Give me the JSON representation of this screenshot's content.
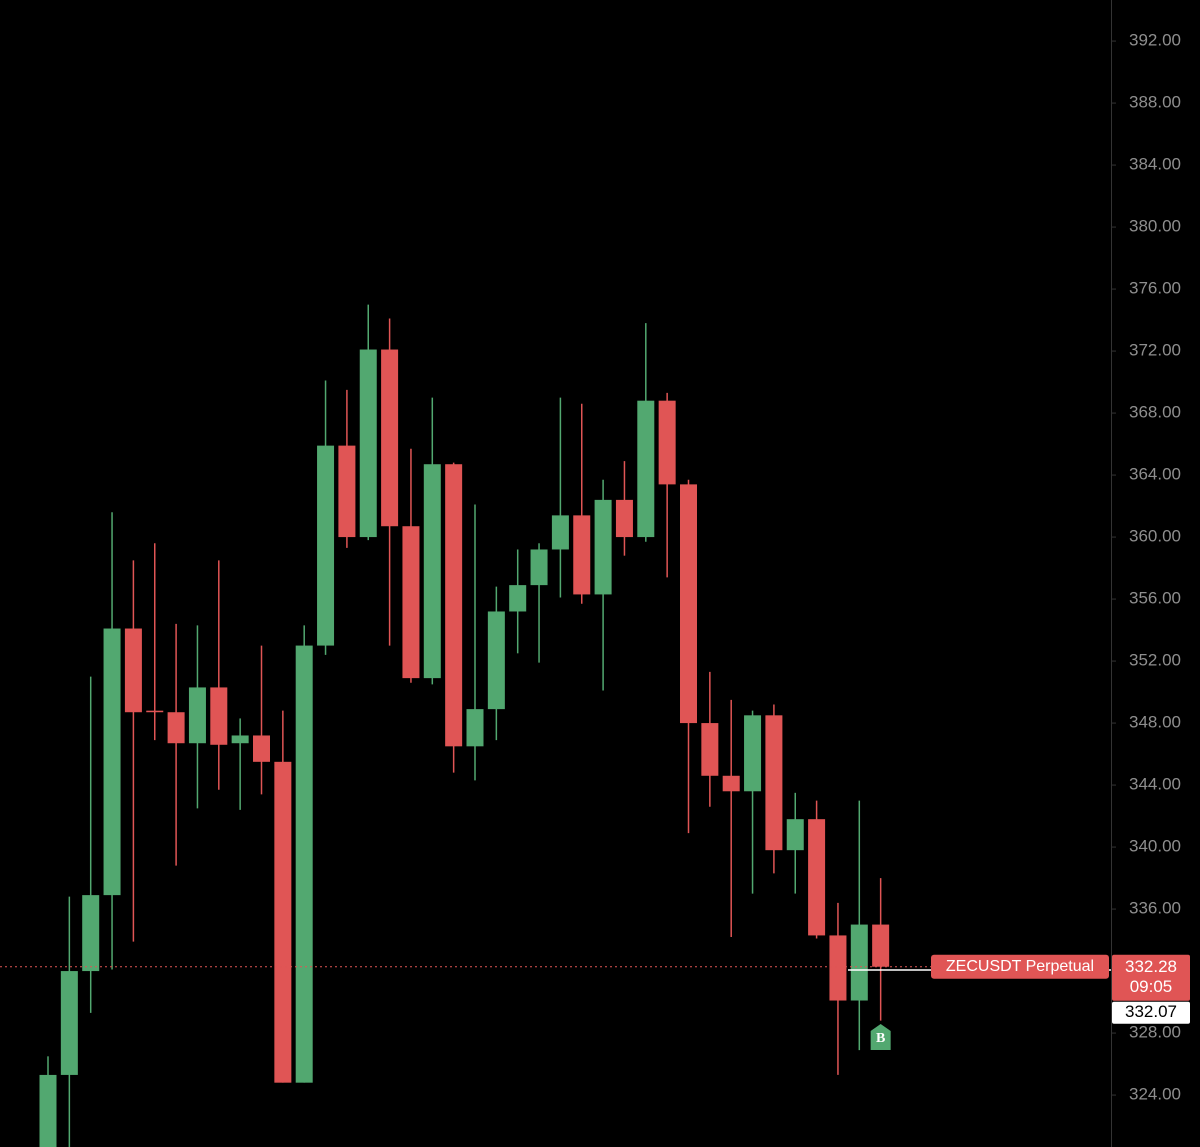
{
  "chart_data": {
    "type": "candlestick",
    "open": [
      320.5,
      325.3,
      332.0,
      336.9,
      354.1,
      348.8,
      348.7,
      346.7,
      350.3,
      346.7,
      347.2,
      345.5,
      324.8,
      353.0,
      365.9,
      360.0,
      372.1,
      360.7,
      350.9,
      364.7,
      346.5,
      348.9,
      355.2,
      356.9,
      359.2,
      361.4,
      356.3,
      362.4,
      360.0,
      368.8,
      363.4,
      348.0,
      344.6,
      343.6,
      348.5,
      339.8,
      341.8,
      334.3,
      330.1,
      335.0
    ],
    "high": [
      326.5,
      336.8,
      351.0,
      361.6,
      358.5,
      359.6,
      354.4,
      354.3,
      358.5,
      348.3,
      353.0,
      348.8,
      354.3,
      370.1,
      369.5,
      375.0,
      374.1,
      365.7,
      369.0,
      364.8,
      362.1,
      356.8,
      359.2,
      359.6,
      369.0,
      368.6,
      363.7,
      364.9,
      373.8,
      369.3,
      363.7,
      351.3,
      349.5,
      348.8,
      349.2,
      343.5,
      343.0,
      336.4,
      343.0,
      338.0
    ],
    "low": [
      319.5,
      320.0,
      329.3,
      332.1,
      333.9,
      346.9,
      338.8,
      342.5,
      343.7,
      342.4,
      343.4,
      324.8,
      324.8,
      352.4,
      359.3,
      359.8,
      353.0,
      350.6,
      350.5,
      344.8,
      344.3,
      346.9,
      352.5,
      351.9,
      356.1,
      355.7,
      350.1,
      358.8,
      359.7,
      357.4,
      340.9,
      342.6,
      334.2,
      337.0,
      338.3,
      337.0,
      334.1,
      325.3,
      326.9,
      328.8
    ],
    "close": [
      325.3,
      332.0,
      336.9,
      354.1,
      348.7,
      348.7,
      346.7,
      350.3,
      346.6,
      347.2,
      345.5,
      324.8,
      353.0,
      365.9,
      360.0,
      372.1,
      360.7,
      350.9,
      364.7,
      346.5,
      348.9,
      355.2,
      356.9,
      359.2,
      361.4,
      356.3,
      362.4,
      360.0,
      368.8,
      363.4,
      348.0,
      344.6,
      343.6,
      348.5,
      339.8,
      341.8,
      334.3,
      330.1,
      335.0,
      332.28
    ],
    "up_color": "#52a870",
    "down_color": "#e05555",
    "ylim": [
      320.65,
      394.65
    ],
    "yticks": [
      {
        "value": 324,
        "label": "324.00"
      },
      {
        "value": 328,
        "label": "328.00"
      },
      {
        "value": 332,
        "label": "332.00"
      },
      {
        "value": 336,
        "label": "336.00"
      },
      {
        "value": 340,
        "label": "340.00"
      },
      {
        "value": 344,
        "label": "344.00"
      },
      {
        "value": 348,
        "label": "348.00"
      },
      {
        "value": 352,
        "label": "352.00"
      },
      {
        "value": 356,
        "label": "356.00"
      },
      {
        "value": 360,
        "label": "360.00"
      },
      {
        "value": 364,
        "label": "364.00"
      },
      {
        "value": 368,
        "label": "368.00"
      },
      {
        "value": 372,
        "label": "372.00"
      },
      {
        "value": 376,
        "label": "376.00"
      },
      {
        "value": 380,
        "label": "380.00"
      },
      {
        "value": 384,
        "label": "384.00"
      },
      {
        "value": 388,
        "label": "388.00"
      },
      {
        "value": 392,
        "label": "392.00"
      }
    ],
    "symbol": "ZECUSDT Perpetual",
    "last_price": 332.28,
    "countdown": "09:05",
    "mark_price": 332.07,
    "marker": "B"
  }
}
